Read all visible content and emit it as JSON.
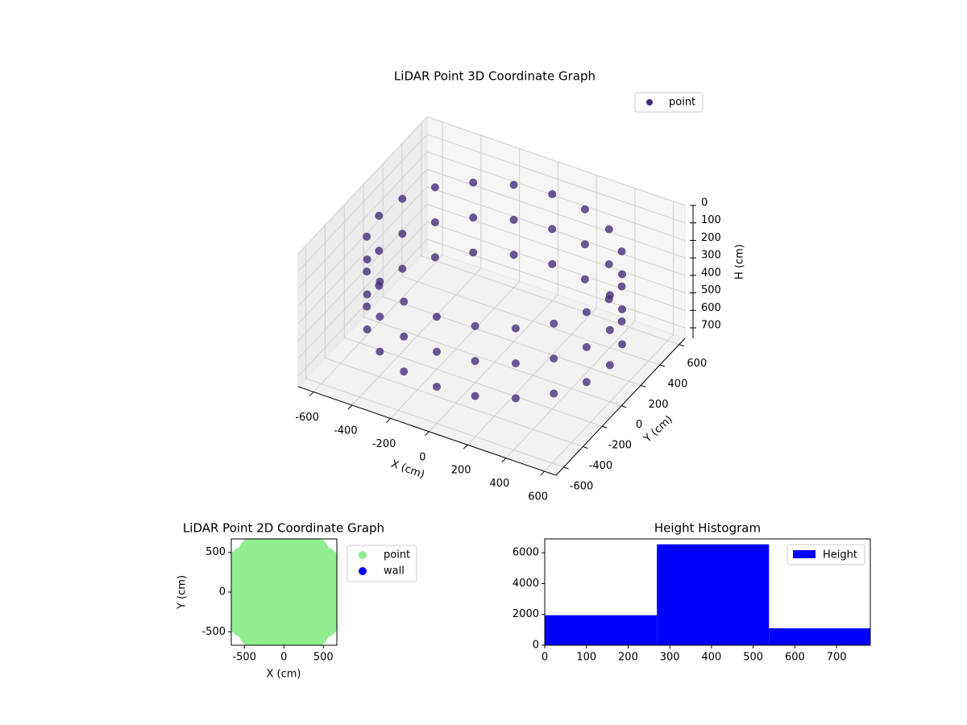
{
  "chart_data": [
    {
      "type": "scatter3d",
      "title": "LiDAR Point 3D Coordinate Graph",
      "xlabel": "X (cm)",
      "ylabel": "Y (cm)",
      "zlabel": "H (cm)",
      "xlim": [
        -680,
        660
      ],
      "ylim": [
        -680,
        660
      ],
      "zlim": [
        0,
        760
      ],
      "zinverted": true,
      "grid": true,
      "legend": "upper right",
      "xticks": [
        -600,
        -400,
        -200,
        0,
        200,
        400,
        600
      ],
      "yticks": [
        -600,
        -400,
        -200,
        0,
        200,
        400,
        600
      ],
      "zticks": [
        0,
        100,
        200,
        300,
        400,
        500,
        600,
        700
      ],
      "series": [
        {
          "name": "point",
          "color": "#472d7b",
          "x": [
            600,
            571,
            485,
            353,
            185,
            0,
            -185,
            -353,
            -485,
            -571,
            -600,
            -571,
            -485,
            -353,
            -185,
            0,
            185,
            353,
            485,
            571,
            600,
            571,
            485,
            353,
            185,
            0,
            -185,
            -353,
            -485,
            -571,
            -600,
            -571,
            -485,
            -353,
            -185,
            0,
            185,
            353,
            485,
            571,
            600,
            571,
            485,
            353,
            185,
            0,
            -185,
            -353,
            -485,
            -571,
            -600,
            -571,
            -485,
            -353,
            -185,
            0,
            185,
            353,
            485,
            571
          ],
          "y": [
            0,
            185,
            353,
            485,
            571,
            600,
            571,
            485,
            353,
            185,
            0,
            -185,
            -353,
            -485,
            -571,
            -600,
            -571,
            -485,
            -353,
            -185,
            0,
            185,
            353,
            485,
            571,
            600,
            571,
            485,
            353,
            185,
            0,
            -185,
            -353,
            -485,
            -571,
            -600,
            -571,
            -485,
            -353,
            -185,
            0,
            185,
            353,
            485,
            571,
            600,
            571,
            485,
            353,
            185,
            0,
            -185,
            -353,
            -485,
            -571,
            -600,
            -571,
            -485,
            -353,
            -185
          ],
          "z": [
            150,
            150,
            150,
            150,
            150,
            150,
            150,
            150,
            150,
            150,
            150,
            150,
            150,
            150,
            150,
            150,
            150,
            150,
            150,
            150,
            350,
            350,
            350,
            350,
            350,
            350,
            350,
            350,
            350,
            350,
            350,
            350,
            350,
            350,
            350,
            350,
            350,
            350,
            350,
            350,
            550,
            550,
            550,
            550,
            550,
            550,
            550,
            550,
            550,
            550,
            550,
            550,
            550,
            550,
            550,
            550,
            550,
            550,
            550,
            550
          ]
        }
      ]
    },
    {
      "type": "scatter",
      "title": "LiDAR Point 2D Coordinate Graph",
      "xlabel": "X (cm)",
      "ylabel": "Y (cm)",
      "xlim": [
        -665,
        670
      ],
      "ylim": [
        -670,
        670
      ],
      "xticks": [
        -500,
        0,
        500
      ],
      "yticks": [
        -500,
        0,
        500
      ],
      "legend": "outside upper right",
      "series": [
        {
          "name": "point",
          "color": "#90ee90",
          "x": [
            600,
            571,
            485,
            353,
            185,
            0,
            -185,
            -353,
            -485,
            -571,
            -600,
            -571,
            -485,
            -353,
            -185,
            0,
            185,
            353,
            485,
            571,
            0,
            300,
            -300,
            0,
            0,
            300,
            300,
            -300,
            -300
          ],
          "y": [
            0,
            185,
            353,
            485,
            571,
            600,
            571,
            485,
            353,
            185,
            0,
            -185,
            -353,
            -485,
            -571,
            -600,
            -571,
            -485,
            -353,
            -185,
            0,
            0,
            0,
            300,
            -300,
            300,
            -300,
            300,
            -300
          ]
        },
        {
          "name": "wall",
          "color": "#0000ff",
          "x": [],
          "y": []
        }
      ]
    },
    {
      "type": "histogram",
      "title": "Height Histogram",
      "legend": "upper right",
      "bins": [
        0,
        269,
        538,
        781
      ],
      "xlim": [
        0,
        781
      ],
      "ylim": [
        0,
        6900
      ],
      "xticks": [
        0,
        100,
        200,
        300,
        400,
        500,
        600,
        700
      ],
      "yticks": [
        0,
        2000,
        4000,
        6000
      ],
      "series": [
        {
          "name": "Height",
          "color": "#0000ff",
          "values": [
            1950,
            6550,
            1100
          ]
        }
      ]
    }
  ]
}
